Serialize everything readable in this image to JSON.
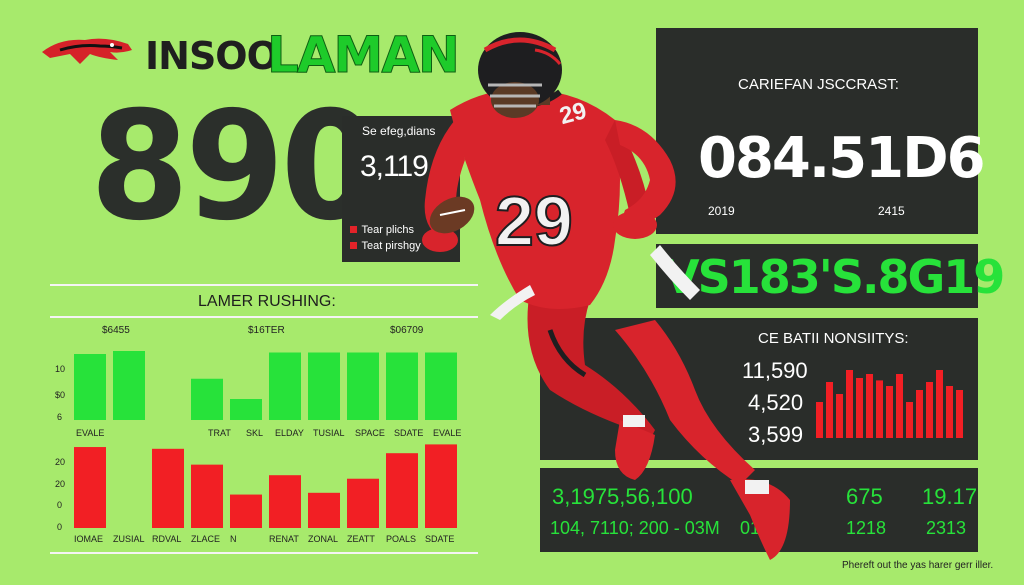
{
  "header": {
    "logo_name": "team-logo",
    "wordmark": "INSOO",
    "title": "LAMAN"
  },
  "big_number": "890",
  "stats_box": {
    "heading": "Se efeg,dians",
    "value": "3,119",
    "legend": [
      "Tear plichs",
      "Teat pirshgy"
    ]
  },
  "rushing": {
    "title": "LAMER RUSHING:",
    "top_labels": [
      "$6455",
      "$16TER",
      "$06709"
    ],
    "green_y": [
      "10",
      "$0",
      "6"
    ],
    "green_values": [
      0.88,
      0.92,
      0.0,
      0.55,
      0.28,
      0.9,
      0.9,
      0.9,
      0.9,
      0.9
    ],
    "green_labels_cats": [
      "EVALE",
      "",
      "",
      "TRAT",
      "SKL",
      "ELDAY",
      "TUSIAL",
      "SPACE",
      "SDATE",
      "EVALE"
    ],
    "red_y": [
      "20",
      "20",
      "0",
      "0"
    ],
    "red_values": [
      0.92,
      0.0,
      0.9,
      0.72,
      0.38,
      0.6,
      0.4,
      0.56,
      0.85,
      0.95
    ],
    "red_cats": [
      "IOMAE",
      "ZUSIAL",
      "RDVAL",
      "ZLACE",
      "N",
      "RENAT",
      "ZONAL",
      "ZEATT",
      "POALS",
      "SDATE"
    ]
  },
  "career": {
    "heading": "CARIEFAN JSCCRAST:",
    "value": "084.51D6",
    "year_left": "2019",
    "year_right": "2415",
    "green_line": "VS183'S.8G19"
  },
  "seasons": {
    "heading": "CE BATII NONSIITYS:",
    "values": [
      "11,590",
      "4,520",
      "3,599"
    ],
    "bar_values": [
      0.45,
      0.7,
      0.55,
      0.85,
      0.75,
      0.8,
      0.72,
      0.65,
      0.8,
      0.45,
      0.6,
      0.7,
      0.85,
      0.65,
      0.6
    ]
  },
  "bottom": {
    "line1": "3,1975,56,100",
    "line2": "104, 7110; 200 - 03M",
    "c1a": "0",
    "c1b": "01",
    "c2a": "675",
    "c2b": "1218",
    "c3a": "19.17",
    "c3b": "2313"
  },
  "footer": "Phereft out the yas harer gerr iller.",
  "player": {
    "jersey_number": "29",
    "colors": {
      "jersey": "#d8242c",
      "helmet": "#1e1e20",
      "accent": "#f2f2f2"
    }
  },
  "colors": {
    "background": "#a7ea6c",
    "panel": "#2a2d2a",
    "bar_green": "#27e23a",
    "bar_red": "#f21f24"
  }
}
